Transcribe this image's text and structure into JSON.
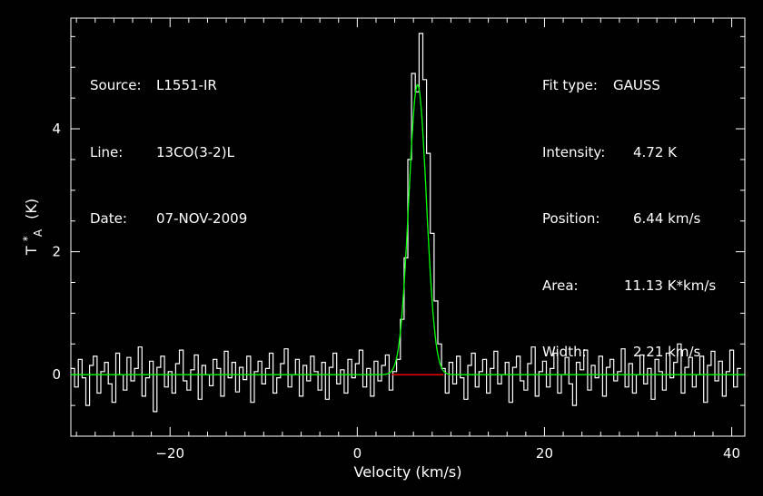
{
  "header_left": {
    "source_label": "Source:",
    "source_value": "L1551-IR",
    "line_label": "Line:",
    "line_value": "13CO(3-2)L",
    "date_label": "Date:",
    "date_value": "07-NOV-2009"
  },
  "fit_info": {
    "fit_type_label": "Fit type:",
    "fit_type_value": "GAUSS",
    "intensity_label": "Intensity:",
    "intensity_value": "4.72 K",
    "position_label": "Position:",
    "position_value": "6.44 km/s",
    "area_label": "Area:",
    "area_value": "11.13 K*km/s",
    "width_label": "Width:",
    "width_value": "2.21 km/s"
  },
  "colors": {
    "background": "#000000",
    "frame": "#ffffff",
    "spectrum": "#ffffff",
    "fit": "#00ff00",
    "fit_window": "#ff0000"
  },
  "chart_data": {
    "type": "line",
    "xlabel": "Velocity (km/s)",
    "ylabel_main": "T",
    "ylabel_sup": "*",
    "ylabel_sub": "A",
    "ylabel_unit": "(K)",
    "xlim": [
      -30.6,
      41.4
    ],
    "ylim": [
      -1.0,
      5.8
    ],
    "xticks": [
      -20,
      0,
      20,
      40
    ],
    "xtick_labels": [
      "−20",
      "0",
      "20",
      "40"
    ],
    "yticks": [
      0,
      2,
      4
    ],
    "ytick_labels": [
      "0",
      "2",
      "4"
    ],
    "grid": false,
    "series": [
      {
        "kind": "spectrum-histogram",
        "x": [
          -30.4,
          -30.0,
          -29.6,
          -29.2,
          -28.8,
          -28.4,
          -28.0,
          -27.6,
          -27.2,
          -26.8,
          -26.4,
          -26.0,
          -25.6,
          -25.2,
          -24.8,
          -24.4,
          -24.0,
          -23.6,
          -23.2,
          -22.8,
          -22.4,
          -22.0,
          -21.6,
          -21.2,
          -20.8,
          -20.4,
          -20.0,
          -19.6,
          -19.2,
          -18.8,
          -18.4,
          -18.0,
          -17.6,
          -17.2,
          -16.8,
          -16.4,
          -16.0,
          -15.6,
          -15.2,
          -14.8,
          -14.4,
          -14.0,
          -13.6,
          -13.2,
          -12.8,
          -12.4,
          -12.0,
          -11.6,
          -11.2,
          -10.8,
          -10.4,
          -10.0,
          -9.6,
          -9.2,
          -8.8,
          -8.4,
          -8.0,
          -7.6,
          -7.2,
          -6.8,
          -6.4,
          -6.0,
          -5.6,
          -5.2,
          -4.8,
          -4.4,
          -4.0,
          -3.6,
          -3.2,
          -2.8,
          -2.4,
          -2.0,
          -1.6,
          -1.2,
          -0.8,
          -0.4,
          0.0,
          0.4,
          0.8,
          1.2,
          1.6,
          2.0,
          2.4,
          2.8,
          3.2,
          3.6,
          4.0,
          4.4,
          4.8,
          5.2,
          5.6,
          6.0,
          6.4,
          6.8,
          7.2,
          7.6,
          8.0,
          8.4,
          8.8,
          9.2,
          9.6,
          10.0,
          10.4,
          10.8,
          11.2,
          11.6,
          12.0,
          12.4,
          12.8,
          13.2,
          13.6,
          14.0,
          14.4,
          14.8,
          15.2,
          15.6,
          16.0,
          16.4,
          16.8,
          17.2,
          17.6,
          18.0,
          18.4,
          18.8,
          19.2,
          19.6,
          20.0,
          20.4,
          20.8,
          21.2,
          21.6,
          22.0,
          22.4,
          22.8,
          23.2,
          23.6,
          24.0,
          24.4,
          24.8,
          25.2,
          25.6,
          26.0,
          26.4,
          26.8,
          27.2,
          27.6,
          28.0,
          28.4,
          28.8,
          29.2,
          29.6,
          30.0,
          30.4,
          30.8,
          31.2,
          31.6,
          32.0,
          32.4,
          32.8,
          33.2,
          33.6,
          34.0,
          34.4,
          34.8,
          35.2,
          35.6,
          36.0,
          36.4,
          36.8,
          37.2,
          37.6,
          38.0,
          38.4,
          38.8,
          39.2,
          39.6,
          40.0,
          40.4,
          40.8,
          41.2
        ],
        "y": [
          0.1,
          -0.2,
          0.25,
          -0.05,
          -0.5,
          0.15,
          0.3,
          -0.3,
          0.05,
          0.2,
          -0.15,
          -0.45,
          0.35,
          0.0,
          -0.25,
          0.28,
          -0.1,
          0.1,
          0.45,
          -0.35,
          -0.05,
          0.22,
          -0.6,
          0.12,
          0.3,
          -0.2,
          0.05,
          -0.3,
          0.18,
          0.4,
          -0.1,
          -0.25,
          0.08,
          0.32,
          -0.4,
          0.15,
          0.0,
          -0.18,
          0.25,
          0.1,
          -0.35,
          0.38,
          -0.05,
          0.2,
          -0.28,
          0.12,
          -0.08,
          0.3,
          -0.45,
          0.05,
          0.22,
          -0.15,
          0.1,
          0.35,
          -0.3,
          -0.05,
          0.18,
          0.42,
          -0.2,
          0.0,
          0.25,
          -0.35,
          0.15,
          -0.1,
          0.3,
          0.05,
          -0.25,
          0.2,
          -0.4,
          0.12,
          0.35,
          -0.15,
          0.08,
          -0.3,
          0.25,
          -0.05,
          0.18,
          0.4,
          -0.2,
          0.1,
          -0.35,
          0.22,
          -0.1,
          0.15,
          0.32,
          -0.25,
          0.05,
          0.25,
          0.9,
          1.9,
          3.5,
          4.9,
          4.6,
          5.55,
          4.8,
          3.6,
          2.3,
          1.2,
          0.5,
          0.1,
          -0.3,
          0.2,
          -0.15,
          0.3,
          -0.05,
          -0.4,
          0.15,
          0.35,
          -0.2,
          0.05,
          0.25,
          -0.3,
          0.1,
          0.38,
          -0.15,
          0.0,
          0.2,
          -0.45,
          0.12,
          0.3,
          -0.1,
          -0.25,
          0.18,
          0.45,
          -0.35,
          0.05,
          0.22,
          -0.2,
          0.1,
          0.35,
          -0.3,
          0.0,
          0.28,
          -0.15,
          -0.5,
          0.2,
          0.08,
          0.4,
          -0.25,
          0.15,
          -0.05,
          0.3,
          -0.35,
          0.12,
          0.25,
          -0.1,
          0.05,
          0.42,
          -0.2,
          0.18,
          -0.3,
          0.0,
          0.32,
          -0.15,
          0.1,
          -0.4,
          0.25,
          0.05,
          -0.25,
          0.35,
          -0.05,
          0.2,
          0.5,
          -0.3,
          0.12,
          0.28,
          -0.2,
          0.0,
          0.3,
          -0.45,
          0.15,
          0.38,
          -0.1,
          0.22,
          -0.35,
          0.05,
          0.4,
          -0.2,
          0.1
        ]
      },
      {
        "kind": "gaussian-fit",
        "amplitude": 4.72,
        "center": 6.44,
        "fwhm": 2.21,
        "x_range": [
          -30.6,
          41.4
        ]
      },
      {
        "kind": "fit-window",
        "x": [
          3.7,
          9.2
        ],
        "y": [
          0,
          0
        ]
      }
    ]
  }
}
